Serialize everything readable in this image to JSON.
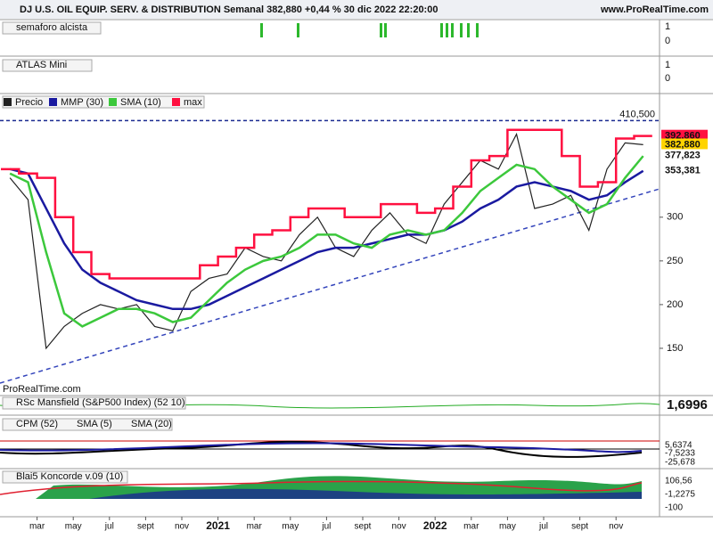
{
  "header": {
    "title": "DJ U.S. OIL EQUIP. SERV. & DISTRIBUTION Semanal 382,880 +0,44 % 30 dic 2022 22:20:00",
    "site": "www.ProRealTime.com"
  },
  "panels": {
    "semaforo": {
      "name": "semaforo alcista",
      "ticks": [
        "1",
        "0"
      ]
    },
    "atlas": {
      "name": "ATLAS Mini",
      "ticks": [
        "1",
        "0"
      ]
    },
    "mansfield": {
      "name": "RSc Mansfield (S&P500 Index) (52 10)",
      "value": "1,6996"
    },
    "cpm": {
      "legend": [
        "CPM (52)",
        "SMA (5)",
        "SMA (20)"
      ],
      "values": [
        "5,6374",
        "-7,5233",
        "-25,678"
      ]
    },
    "koncorde": {
      "name": "Blai5 Koncorde v.09 (10)",
      "values": [
        "106,56",
        "-1,2275",
        "-100"
      ]
    }
  },
  "chart_data": {
    "type": "line",
    "watermark": "ProRealTime.com",
    "categories": [
      null,
      null,
      "mar",
      null,
      "may",
      null,
      "jul",
      null,
      "sept",
      null,
      "nov",
      null,
      "2021",
      null,
      "mar",
      null,
      "may",
      null,
      "jul",
      null,
      "sept",
      null,
      "nov",
      null,
      "2022",
      null,
      "mar",
      null,
      "may",
      null,
      "jul",
      null,
      "sept",
      null,
      "nov",
      null
    ],
    "series": [
      {
        "name": "Precio",
        "color": "#222222",
        "values": [
          345,
          320,
          150,
          175,
          190,
          200,
          195,
          200,
          175,
          170,
          215,
          230,
          235,
          265,
          255,
          250,
          280,
          300,
          265,
          255,
          285,
          305,
          280,
          270,
          315,
          340,
          365,
          355,
          395,
          310,
          315,
          325,
          285,
          355,
          385,
          383
        ]
      },
      {
        "name": "MMP (30)",
        "color": "#1a1aa0",
        "values": [
          355,
          350,
          310,
          270,
          240,
          225,
          215,
          205,
          200,
          195,
          195,
          200,
          210,
          220,
          230,
          240,
          250,
          260,
          265,
          265,
          270,
          275,
          280,
          280,
          285,
          295,
          310,
          320,
          335,
          340,
          335,
          330,
          320,
          325,
          340,
          353
        ]
      },
      {
        "name": "SMA (10)",
        "color": "#3cc83c",
        "values": [
          350,
          340,
          260,
          190,
          175,
          185,
          195,
          195,
          190,
          180,
          185,
          205,
          225,
          240,
          250,
          255,
          265,
          280,
          280,
          270,
          265,
          280,
          285,
          280,
          285,
          305,
          330,
          345,
          360,
          355,
          335,
          320,
          305,
          315,
          345,
          370
        ]
      },
      {
        "name": "max",
        "color": "#ff1040",
        "values": [
          355,
          350,
          345,
          300,
          260,
          235,
          230,
          230,
          230,
          230,
          230,
          245,
          255,
          265,
          280,
          285,
          300,
          310,
          310,
          300,
          300,
          315,
          315,
          305,
          310,
          335,
          365,
          370,
          400,
          400,
          400,
          370,
          335,
          340,
          390,
          393
        ]
      }
    ],
    "ylim": [
      100,
      416
    ],
    "yticks": [
      150,
      200,
      250,
      300
    ],
    "resistance": {
      "value": 410.5,
      "label": "410,500"
    },
    "price_labels": [
      {
        "value": 392.86,
        "label": "392,860"
      },
      {
        "value": 382.88,
        "label": "382,880"
      },
      {
        "value": 377.823,
        "label": "377,823"
      },
      {
        "value": 353.381,
        "label": "353,381"
      }
    ]
  }
}
